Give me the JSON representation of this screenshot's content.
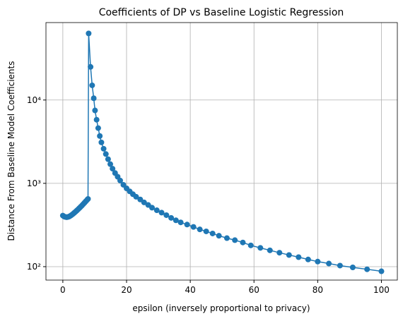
{
  "chart_data": {
    "type": "line",
    "title": "Coefficients of DP vs Baseline Logistic Regression",
    "xlabel": "epsilon (inversely proportional to privacy)",
    "ylabel": "Distance From Baseline Model Coefficients",
    "ylog": true,
    "grid": true,
    "xlim": [
      -5.3,
      105
    ],
    "ylim": [
      69,
      85000
    ],
    "xticks": [
      0,
      20,
      40,
      60,
      80,
      100
    ],
    "yticks": [
      {
        "value": 100,
        "label": "10²"
      },
      {
        "value": 1000,
        "label": "10³"
      },
      {
        "value": 10000,
        "label": "10⁴"
      }
    ],
    "series": [
      {
        "color": "#1f77b4",
        "x": [
          0,
          0.4,
          0.8,
          1.2,
          1.6,
          2,
          2.4,
          2.8,
          3.2,
          3.6,
          4,
          4.4,
          4.8,
          5.2,
          5.6,
          6,
          6.4,
          6.8,
          7.2,
          7.6,
          7.9,
          8.1,
          8.7,
          9.2,
          9.7,
          10.1,
          10.6,
          11.1,
          11.6,
          12.1,
          12.8,
          13.5,
          14.2,
          14.9,
          15.6,
          16.4,
          17.2,
          18,
          19,
          20,
          21,
          22,
          23,
          24.3,
          25.5,
          26.8,
          28,
          29.5,
          31,
          32.5,
          34,
          35.5,
          37,
          39,
          41,
          43,
          45,
          47,
          49,
          51.5,
          54,
          56.5,
          59,
          62,
          65,
          68,
          71,
          74,
          77,
          80,
          83.5,
          87,
          91,
          95.5,
          100
        ],
        "values": [
          410,
          400,
          395,
          392,
          395,
          400,
          408,
          418,
          430,
          443,
          457,
          472,
          488,
          505,
          523,
          542,
          563,
          585,
          608,
          632,
          650,
          63000,
          25000,
          15000,
          10500,
          7500,
          5800,
          4600,
          3700,
          3100,
          2600,
          2250,
          1950,
          1700,
          1500,
          1330,
          1200,
          1080,
          960,
          870,
          800,
          740,
          690,
          640,
          590,
          550,
          510,
          475,
          445,
          415,
          385,
          360,
          340,
          320,
          300,
          280,
          265,
          250,
          235,
          220,
          208,
          195,
          180,
          168,
          157,
          147,
          138,
          130,
          122,
          115,
          109,
          103,
          98,
          93,
          88
        ]
      }
    ]
  }
}
